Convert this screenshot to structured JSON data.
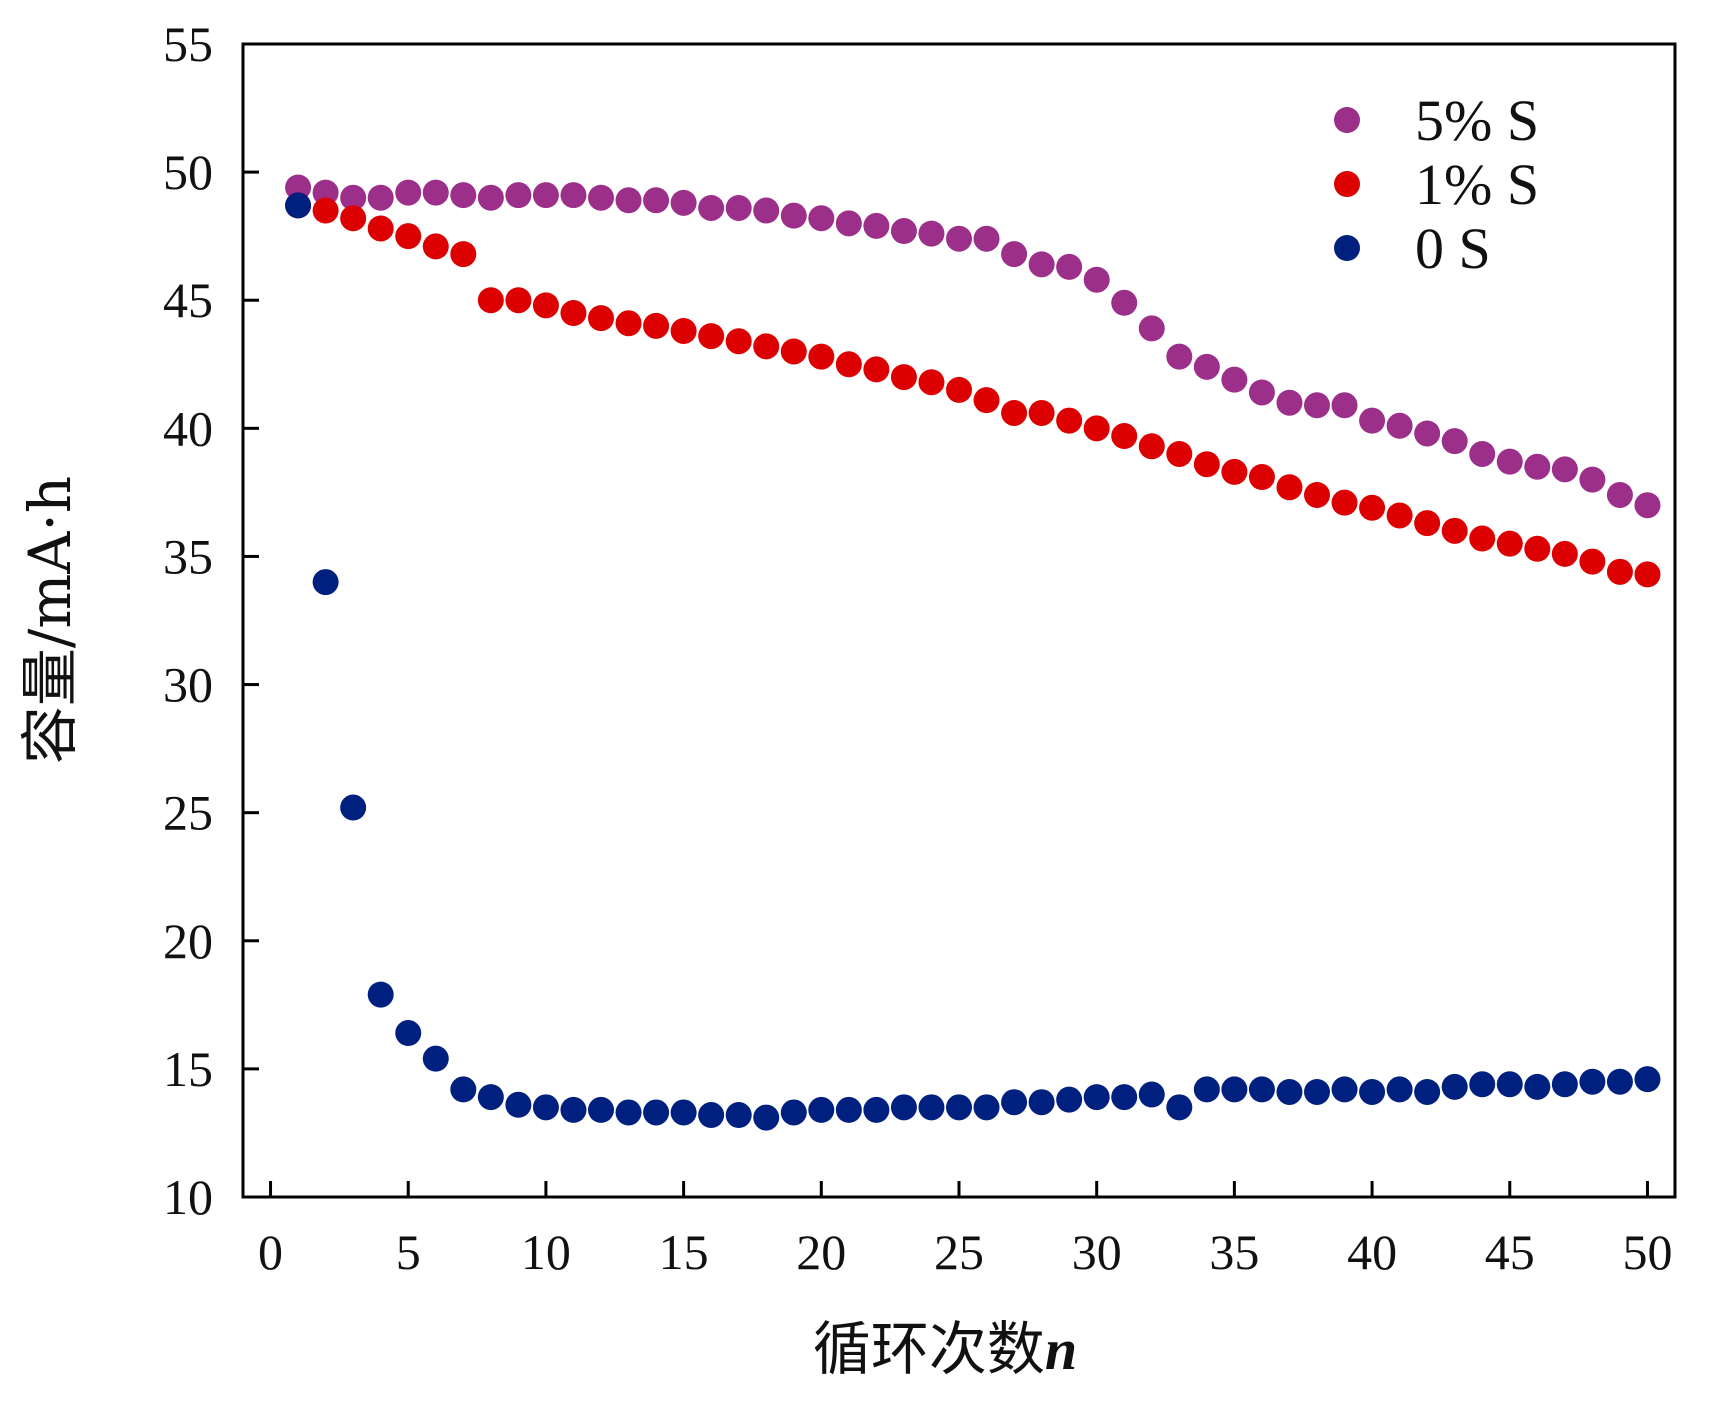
{
  "chart_data": {
    "type": "scatter",
    "title": "",
    "xlabel": "循环次数",
    "xlabel_suffix": "n",
    "ylabel": "容量/mA·h",
    "xlim": [
      -1,
      51
    ],
    "ylim": [
      10,
      55
    ],
    "xticks": [
      0,
      5,
      10,
      15,
      20,
      25,
      30,
      35,
      40,
      45,
      50
    ],
    "yticks": [
      10,
      15,
      20,
      25,
      30,
      35,
      40,
      45,
      50,
      55
    ],
    "grid": false,
    "legend_position": "top-right",
    "x": [
      1,
      2,
      3,
      4,
      5,
      6,
      7,
      8,
      9,
      10,
      11,
      12,
      13,
      14,
      15,
      16,
      17,
      18,
      19,
      20,
      21,
      22,
      23,
      24,
      25,
      26,
      27,
      28,
      29,
      30,
      31,
      32,
      33,
      34,
      35,
      36,
      37,
      38,
      39,
      40,
      41,
      42,
      43,
      44,
      45,
      46,
      47,
      48,
      49,
      50
    ],
    "series": [
      {
        "name": "5% S",
        "color": "#9b2f8a",
        "values": [
          49.4,
          49.2,
          49.0,
          49.0,
          49.2,
          49.2,
          49.1,
          49.0,
          49.1,
          49.1,
          49.1,
          49.0,
          48.9,
          48.9,
          48.8,
          48.6,
          48.6,
          48.5,
          48.3,
          48.2,
          48.0,
          47.9,
          47.7,
          47.6,
          47.4,
          47.4,
          46.8,
          46.4,
          46.3,
          45.8,
          44.9,
          43.9,
          42.8,
          42.4,
          41.9,
          41.4,
          41.0,
          40.9,
          40.9,
          40.3,
          40.1,
          39.8,
          39.5,
          39.0,
          38.7,
          38.5,
          38.4,
          38.0,
          37.4,
          37.0
        ]
      },
      {
        "name": "1% S",
        "color": "#dd0000",
        "values": [
          48.7,
          48.5,
          48.2,
          47.8,
          47.5,
          47.1,
          46.8,
          45.0,
          45.0,
          44.8,
          44.5,
          44.3,
          44.1,
          44.0,
          43.8,
          43.6,
          43.4,
          43.2,
          43.0,
          42.8,
          42.5,
          42.3,
          42.0,
          41.8,
          41.5,
          41.1,
          40.6,
          40.6,
          40.3,
          40.0,
          39.7,
          39.3,
          39.0,
          38.6,
          38.3,
          38.1,
          37.7,
          37.4,
          37.1,
          36.9,
          36.6,
          36.3,
          36.0,
          35.7,
          35.5,
          35.3,
          35.1,
          34.8,
          34.4,
          34.3
        ]
      },
      {
        "name": "0 S",
        "color": "#002080",
        "values": [
          48.7,
          34.0,
          25.2,
          17.9,
          16.4,
          15.4,
          14.2,
          13.9,
          13.6,
          13.5,
          13.4,
          13.4,
          13.3,
          13.3,
          13.3,
          13.2,
          13.2,
          13.1,
          13.3,
          13.4,
          13.4,
          13.4,
          13.5,
          13.5,
          13.5,
          13.5,
          13.7,
          13.7,
          13.8,
          13.9,
          13.9,
          14.0,
          13.5,
          14.2,
          14.2,
          14.2,
          14.1,
          14.1,
          14.2,
          14.1,
          14.2,
          14.1,
          14.3,
          14.4,
          14.4,
          14.3,
          14.4,
          14.5,
          14.5,
          14.6
        ]
      }
    ]
  }
}
